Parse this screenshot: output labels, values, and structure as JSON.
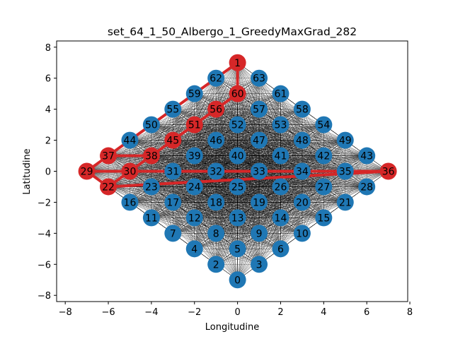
{
  "chart_data": {
    "type": "scatter",
    "title": "set_64_1_50_Albergo_1_GreedyMaxGrad_282",
    "xlabel": "Longitudine",
    "ylabel": "Latitudine",
    "xlim": [
      -8.4,
      7.9
    ],
    "ylim": [
      -8.4,
      8.4
    ],
    "xticks": [
      -8,
      -6,
      -4,
      -2,
      0,
      2,
      4,
      6,
      8
    ],
    "yticks": [
      -8,
      -6,
      -4,
      -2,
      0,
      2,
      4,
      6,
      8
    ],
    "grid": false,
    "colors": {
      "node": "#1f77b4",
      "selected": "#d62728",
      "edge": "#000000"
    },
    "nodes": [
      {
        "id": "0",
        "x": 0,
        "y": -7
      },
      {
        "id": "1",
        "x": 0,
        "y": 7
      },
      {
        "id": "2",
        "x": -1,
        "y": -6
      },
      {
        "id": "3",
        "x": 1,
        "y": -6
      },
      {
        "id": "4",
        "x": -2,
        "y": -5
      },
      {
        "id": "5",
        "x": 0,
        "y": -5
      },
      {
        "id": "6",
        "x": 2,
        "y": -5
      },
      {
        "id": "7",
        "x": -3,
        "y": -4
      },
      {
        "id": "8",
        "x": -1,
        "y": -4
      },
      {
        "id": "9",
        "x": 1,
        "y": -4
      },
      {
        "id": "10",
        "x": 3,
        "y": -4
      },
      {
        "id": "11",
        "x": -4,
        "y": -3
      },
      {
        "id": "12",
        "x": -2,
        "y": -3
      },
      {
        "id": "13",
        "x": 0,
        "y": -3
      },
      {
        "id": "14",
        "x": 2,
        "y": -3
      },
      {
        "id": "15",
        "x": 4,
        "y": -3
      },
      {
        "id": "16",
        "x": -5,
        "y": -2
      },
      {
        "id": "17",
        "x": -3,
        "y": -2
      },
      {
        "id": "18",
        "x": -1,
        "y": -2
      },
      {
        "id": "19",
        "x": 1,
        "y": -2
      },
      {
        "id": "20",
        "x": 3,
        "y": -2
      },
      {
        "id": "21",
        "x": 5,
        "y": -2
      },
      {
        "id": "22",
        "x": -6,
        "y": -1
      },
      {
        "id": "23",
        "x": -4,
        "y": -1
      },
      {
        "id": "24",
        "x": -2,
        "y": -1
      },
      {
        "id": "25",
        "x": 0,
        "y": -1
      },
      {
        "id": "26",
        "x": 2,
        "y": -1
      },
      {
        "id": "27",
        "x": 4,
        "y": -1
      },
      {
        "id": "28",
        "x": 6,
        "y": -1
      },
      {
        "id": "29",
        "x": -7,
        "y": 0
      },
      {
        "id": "30",
        "x": -5,
        "y": 0
      },
      {
        "id": "31",
        "x": -3,
        "y": 0
      },
      {
        "id": "32",
        "x": -1,
        "y": 0
      },
      {
        "id": "33",
        "x": 1,
        "y": 0
      },
      {
        "id": "34",
        "x": 3,
        "y": 0
      },
      {
        "id": "35",
        "x": 5,
        "y": 0
      },
      {
        "id": "36",
        "x": 7,
        "y": 0
      },
      {
        "id": "37",
        "x": -6,
        "y": 1
      },
      {
        "id": "38",
        "x": -4,
        "y": 1
      },
      {
        "id": "39",
        "x": -2,
        "y": 1
      },
      {
        "id": "40",
        "x": 0,
        "y": 1
      },
      {
        "id": "41",
        "x": 2,
        "y": 1
      },
      {
        "id": "42",
        "x": 4,
        "y": 1
      },
      {
        "id": "43",
        "x": 6,
        "y": 1
      },
      {
        "id": "44",
        "x": -5,
        "y": 2
      },
      {
        "id": "45",
        "x": -3,
        "y": 2
      },
      {
        "id": "46",
        "x": -1,
        "y": 2
      },
      {
        "id": "47",
        "x": 1,
        "y": 2
      },
      {
        "id": "48",
        "x": 3,
        "y": 2
      },
      {
        "id": "49",
        "x": 5,
        "y": 2
      },
      {
        "id": "50",
        "x": -4,
        "y": 3
      },
      {
        "id": "51",
        "x": -2,
        "y": 3
      },
      {
        "id": "52",
        "x": 0,
        "y": 3
      },
      {
        "id": "53",
        "x": 2,
        "y": 3
      },
      {
        "id": "54",
        "x": 4,
        "y": 3
      },
      {
        "id": "55",
        "x": -3,
        "y": 4
      },
      {
        "id": "56",
        "x": -1,
        "y": 4
      },
      {
        "id": "57",
        "x": 1,
        "y": 4
      },
      {
        "id": "58",
        "x": 3,
        "y": 4
      },
      {
        "id": "59",
        "x": -2,
        "y": 5
      },
      {
        "id": "60",
        "x": 0,
        "y": 5
      },
      {
        "id": "61",
        "x": 2,
        "y": 5
      },
      {
        "id": "62",
        "x": -1,
        "y": 6
      },
      {
        "id": "63",
        "x": 1,
        "y": 6
      }
    ],
    "selected_nodes": [
      "1",
      "22",
      "29",
      "30",
      "36",
      "37",
      "38",
      "45",
      "51",
      "56",
      "60"
    ],
    "selected_edges": [
      [
        "1",
        "62"
      ],
      [
        "1",
        "60"
      ],
      [
        "62",
        "37"
      ],
      [
        "60",
        "56"
      ],
      [
        "56",
        "51"
      ],
      [
        "51",
        "45"
      ],
      [
        "45",
        "38"
      ],
      [
        "38",
        "37"
      ],
      [
        "38",
        "30"
      ],
      [
        "37",
        "29"
      ],
      [
        "29",
        "22"
      ],
      [
        "29",
        "36"
      ],
      [
        "30",
        "36"
      ],
      [
        "22",
        "36"
      ],
      [
        "30",
        "22"
      ]
    ]
  }
}
